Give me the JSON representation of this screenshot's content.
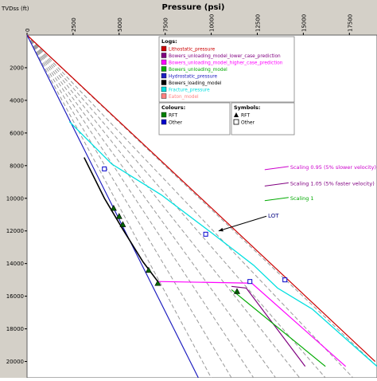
{
  "chart_data": {
    "type": "line",
    "title": "Pressure (psi)",
    "ylabel": "TVDss (ft)",
    "xlim": [
      0,
      19000
    ],
    "ylim": [
      0,
      21000
    ],
    "x_ticks": [
      0,
      2500,
      5000,
      7500,
      10000,
      12500,
      15000,
      17500
    ],
    "x_tick_labels": [
      "0",
      "2500",
      "5000",
      "7500",
      "10000",
      "12500",
      "15000",
      "17500"
    ],
    "y_ticks": [
      2000,
      4000,
      6000,
      8000,
      10000,
      12000,
      14000,
      16000,
      18000,
      20000
    ],
    "y_tick_labels": [
      "2000",
      "4000",
      "6000",
      "8000",
      "10000",
      "12000",
      "14000",
      "16000",
      "18000",
      "20000"
    ],
    "grid": false,
    "legends": {
      "logs_title": "Logs:",
      "logs": [
        {
          "label": "Lithostatic_pressure",
          "color": "#cc0000"
        },
        {
          "label": "Bowers_unloading_model_lower_case_prediction",
          "color": "#800080"
        },
        {
          "label": "Bowers_unloading_model_higher_case_prediction",
          "color": "#ff00ff"
        },
        {
          "label": "Bowers_unloading_model",
          "color": "#00aa00"
        },
        {
          "label": "Hydrostatic_pressure",
          "color": "#2020c0"
        },
        {
          "label": "Bowers_loading_model",
          "color": "#000000"
        },
        {
          "label": "Fracture_pressure",
          "color": "#00e0e0"
        },
        {
          "label": "Eaton_model",
          "color": "#ff8080"
        }
      ],
      "colours_title": "Colours:",
      "colours": [
        {
          "label": "RFT",
          "color": "#008000"
        },
        {
          "label": "Other",
          "color": "#0000cc"
        }
      ],
      "symbols_title": "Symbols:",
      "symbols": [
        {
          "label": "RFT",
          "marker": "triangle"
        },
        {
          "label": "Other",
          "marker": "square"
        }
      ]
    },
    "series": [
      {
        "name": "Lithostatic_pressure",
        "color": "#cc0000",
        "width": 1.2,
        "x": [
          0,
          18900
        ],
        "y": [
          0,
          20000
        ]
      },
      {
        "name": "Hydrostatic_pressure",
        "color": "#2020c0",
        "width": 1.2,
        "x": [
          0,
          9300
        ],
        "y": [
          0,
          21000
        ]
      },
      {
        "name": "Fracture_pressure",
        "color": "#00e0e0",
        "width": 1.3,
        "x": [
          2300,
          4600,
          7300,
          10000,
          12300,
          13600,
          15500,
          17500,
          19000
        ],
        "y": [
          5300,
          7900,
          9800,
          12100,
          14100,
          15500,
          16800,
          18800,
          20300
        ]
      },
      {
        "name": "Bowers_loading_model",
        "color": "#000000",
        "width": 1.6,
        "x": [
          3100,
          4200,
          5200,
          6300,
          7100
        ],
        "y": [
          7500,
          10000,
          11900,
          13900,
          15100
        ]
      },
      {
        "name": "Bowers_unloading_model_higher_case_prediction",
        "color": "#ff00ff",
        "width": 1.2,
        "x": [
          7100,
          12200,
          17300
        ],
        "y": [
          15100,
          15200,
          20300
        ]
      },
      {
        "name": "Bowers_unloading_model_lower_case_prediction",
        "color": "#800080",
        "width": 1.2,
        "x": [
          11100,
          11900,
          15100
        ],
        "y": [
          15400,
          15500,
          20300
        ]
      },
      {
        "name": "Bowers_unloading_model",
        "color": "#00aa00",
        "width": 1.2,
        "x": [
          11100,
          16200
        ],
        "y": [
          15600,
          20300
        ]
      }
    ],
    "trend_lines": [
      {
        "x": [
          0,
          10000
        ],
        "y": [
          0,
          21000
        ]
      },
      {
        "x": [
          0,
          11100
        ],
        "y": [
          0,
          21000
        ]
      },
      {
        "x": [
          0,
          12300
        ],
        "y": [
          0,
          21000
        ]
      },
      {
        "x": [
          0,
          13500
        ],
        "y": [
          0,
          21000
        ]
      },
      {
        "x": [
          0,
          14800
        ],
        "y": [
          0,
          21000
        ]
      },
      {
        "x": [
          0,
          16200
        ],
        "y": [
          0,
          21000
        ]
      },
      {
        "x": [
          0,
          17700
        ],
        "y": [
          0,
          21000
        ]
      },
      {
        "x": [
          0,
          19000
        ],
        "y": [
          0,
          20300
        ]
      }
    ],
    "rft_points": [
      {
        "x": 4700,
        "y": 10600
      },
      {
        "x": 5000,
        "y": 11100
      },
      {
        "x": 5200,
        "y": 11600
      },
      {
        "x": 6600,
        "y": 14400
      },
      {
        "x": 7100,
        "y": 15200
      },
      {
        "x": 11400,
        "y": 15700
      }
    ],
    "other_points": [
      {
        "x": 4200,
        "y": 8200
      },
      {
        "x": 9700,
        "y": 12200
      },
      {
        "x": 12100,
        "y": 15100
      },
      {
        "x": 14000,
        "y": 15000
      }
    ],
    "annotations": [
      {
        "text": "LOT",
        "x": 13000,
        "y": 11000,
        "arrow_to_x": 10400,
        "arrow_to_y": 12000,
        "color": "#000080"
      },
      {
        "text": "Scaling 0.95 (5% slower velocity)",
        "x": 14200,
        "y": 8100,
        "color": "#cc00cc"
      },
      {
        "text": "Scaling 1.05 (5% faster velocity)",
        "x": 14200,
        "y": 9100,
        "color": "#800080"
      },
      {
        "text": "Scaling 1",
        "x": 14200,
        "y": 10000,
        "color": "#00aa00"
      }
    ]
  }
}
